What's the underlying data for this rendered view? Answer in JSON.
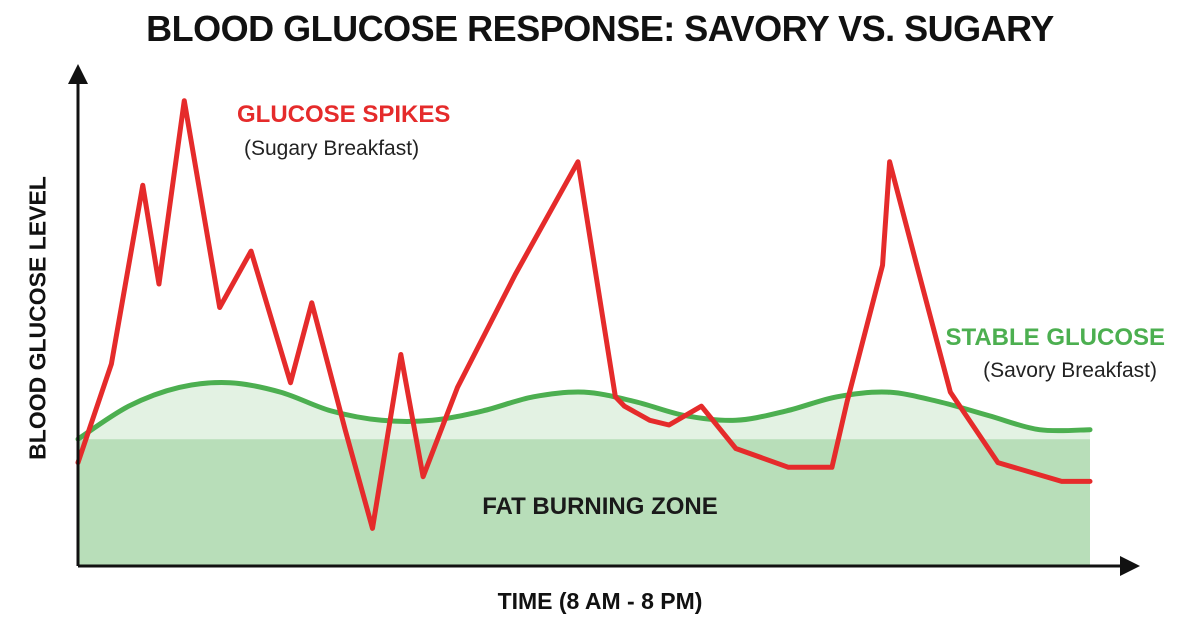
{
  "chart_data": {
    "type": "line",
    "title": "BLOOD GLUCOSE RESPONSE: SAVORY VS. SUGARY",
    "xlabel": "TIME (8 AM - 8 PM)",
    "ylabel": "BLOOD GLUCOSE LEVEL",
    "xlim": [
      0,
      100
    ],
    "ylim": [
      0,
      100
    ],
    "grid": false,
    "series": [
      {
        "name": "GLUCOSE SPIKES",
        "label_sub": "(Sugary Breakfast)",
        "color": "#e52b2b",
        "x": [
          0,
          3.3,
          6.4,
          8.0,
          10.5,
          14.0,
          17.1,
          21.0,
          23.1,
          26.4,
          29.1,
          31.9,
          34.1,
          37.5,
          43.2,
          49.4,
          53.1,
          54.0,
          56.5,
          58.4,
          61.6,
          65.0,
          70.2,
          74.5,
          76.0,
          79.5,
          80.2,
          83.0,
          86.2,
          90.9,
          97.2,
          100
        ],
        "y": [
          22,
          43,
          81,
          60,
          99,
          55,
          67,
          39,
          56,
          29,
          8,
          45,
          19,
          38,
          62,
          86,
          36,
          34,
          31,
          30,
          34,
          25,
          21,
          21,
          35,
          64,
          86,
          63,
          37,
          22,
          18,
          18
        ]
      },
      {
        "name": "STABLE GLUCOSE",
        "label_sub": "(Savory Breakfast)",
        "color": "#4caf50",
        "x": [
          0,
          5,
          10,
          15,
          20,
          25,
          30,
          35,
          40,
          45,
          50,
          55,
          60,
          65,
          70,
          75,
          80,
          85,
          90,
          95,
          100
        ],
        "y": [
          27,
          34,
          38,
          39,
          37,
          33,
          31,
          31,
          33,
          36,
          37,
          35,
          32,
          31,
          33,
          36,
          37,
          35,
          32,
          29,
          29
        ]
      }
    ],
    "zones": [
      {
        "label": "FAT BURNING ZONE",
        "y_min": 0,
        "y_max": 27,
        "color": "#b8deb9"
      }
    ]
  }
}
